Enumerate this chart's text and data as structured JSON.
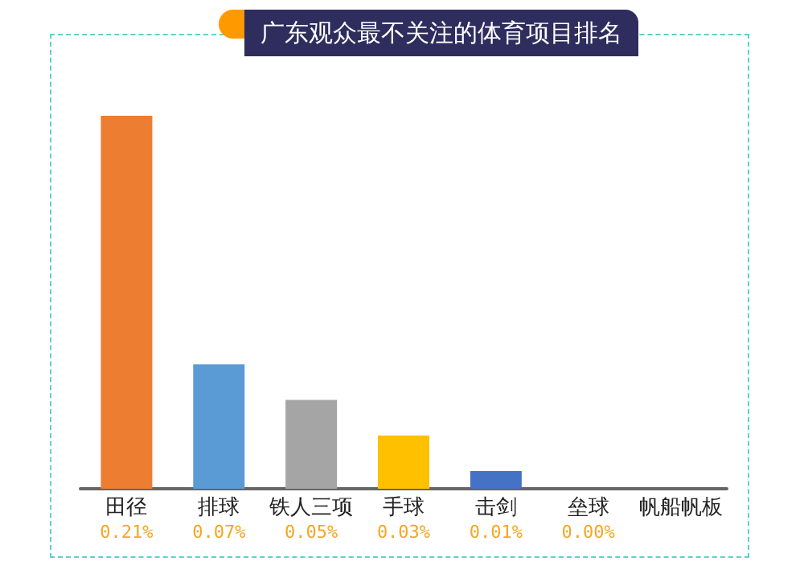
{
  "chart_data": {
    "type": "bar",
    "title": "广东观众最不关注的体育项目排名",
    "categories": [
      "田径",
      "排球",
      "铁人三项",
      "手球",
      "击剑",
      "垒球",
      "帆船帆板"
    ],
    "values": [
      0.21,
      0.07,
      0.05,
      0.03,
      0.01,
      0,
      0
    ],
    "value_labels": [
      "0.21%",
      "0.07%",
      "0.05%",
      "0.03%",
      "0.01%",
      "0.00%",
      null
    ],
    "colors": [
      "#ed7d31",
      "#5b9bd5",
      "#a5a5a5",
      "#ffc000",
      "#4472c4",
      "#4472c4",
      "#4472c4"
    ],
    "grid": false
  }
}
